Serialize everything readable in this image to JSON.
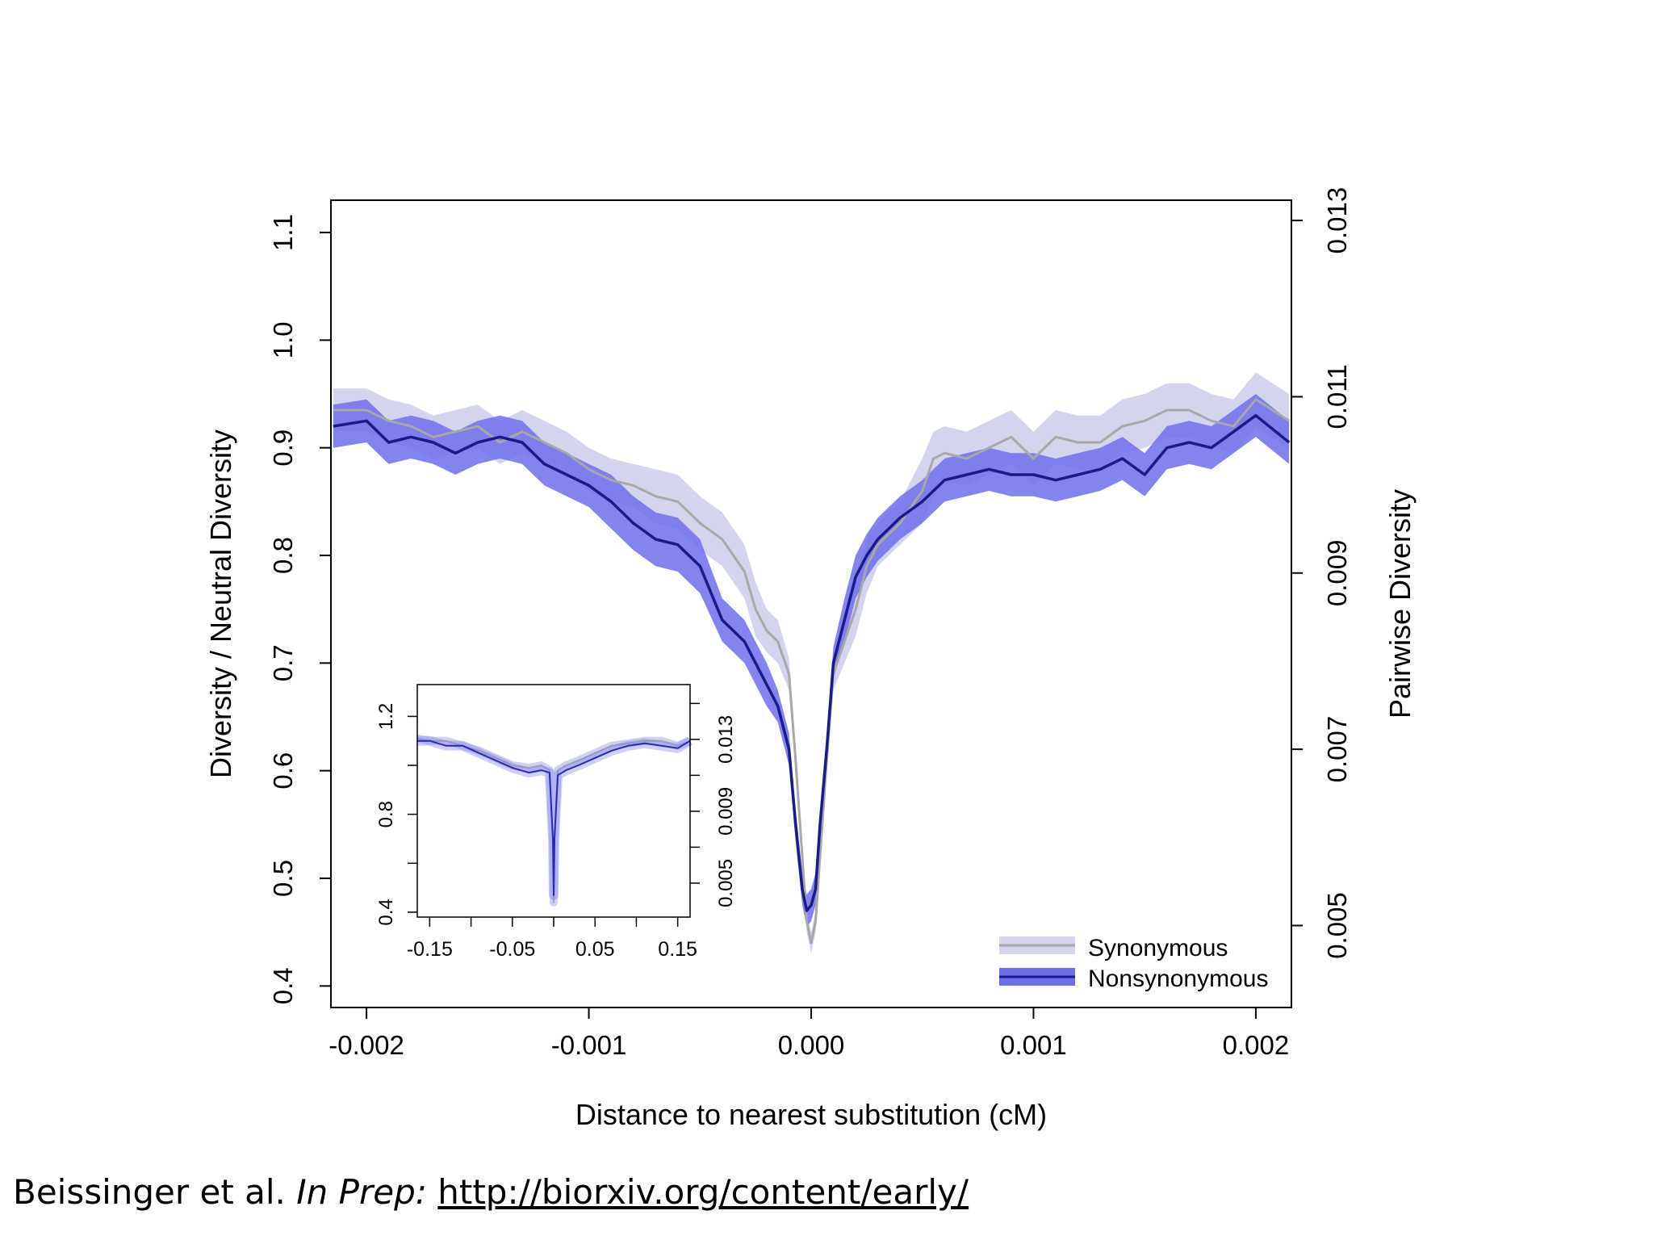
{
  "chart_data": [
    {
      "type": "line",
      "role": "main",
      "xlabel": "Distance to nearest substitution (cM)",
      "ylabel": "Diversity / Neutral Diversity",
      "y2label": "Pairwise Diversity",
      "xlim": [
        -0.00216,
        0.00216
      ],
      "ylim": [
        0.38,
        1.13
      ],
      "y2lim": [
        0.00407,
        0.01323
      ],
      "xticks": [
        "-0.002",
        "-0.001",
        "0.000",
        "0.001",
        "0.002"
      ],
      "xtick_values": [
        -0.002,
        -0.001,
        0.0,
        0.001,
        0.002
      ],
      "yticks": [
        "0.4",
        "0.5",
        "0.6",
        "0.7",
        "0.8",
        "0.9",
        "1.0",
        "1.1"
      ],
      "ytick_values": [
        0.4,
        0.5,
        0.6,
        0.7,
        0.8,
        0.9,
        1.0,
        1.1
      ],
      "y2ticks": [
        "0.005",
        "0.007",
        "0.009",
        "0.011",
        "0.013"
      ],
      "y2tick_values": [
        0.005,
        0.007,
        0.009,
        0.011,
        0.013
      ],
      "legend_position": "bottom-right",
      "grid": false,
      "colors": {
        "synonymous_line": "#a8a8a8",
        "synonymous_band": "#d4d4ee",
        "nonsynonymous_line": "#1a1a8a",
        "nonsynonymous_band": "#6e6eec"
      },
      "series": [
        {
          "name": "Synonymous",
          "x": [
            -0.00215,
            -0.002,
            -0.0019,
            -0.0018,
            -0.0017,
            -0.0016,
            -0.0015,
            -0.0014,
            -0.0013,
            -0.0012,
            -0.0011,
            -0.001,
            -0.0009,
            -0.0008,
            -0.0007,
            -0.0006,
            -0.0005,
            -0.0004,
            -0.0003,
            -0.00025,
            -0.0002,
            -0.00015,
            -0.0001,
            -7e-05,
            -4e-05,
            -2e-05,
            0.0,
            2e-05,
            4e-05,
            7e-05,
            0.0001,
            0.00015,
            0.0002,
            0.00025,
            0.0003,
            0.0004,
            0.0005,
            0.00055,
            0.0006,
            0.0007,
            0.0008,
            0.0009,
            0.001,
            0.0011,
            0.0012,
            0.0013,
            0.0014,
            0.0015,
            0.0016,
            0.0017,
            0.0018,
            0.0019,
            0.002,
            0.00215
          ],
          "y": [
            0.935,
            0.935,
            0.925,
            0.92,
            0.91,
            0.915,
            0.92,
            0.905,
            0.915,
            0.905,
            0.895,
            0.88,
            0.87,
            0.865,
            0.855,
            0.85,
            0.83,
            0.815,
            0.785,
            0.75,
            0.73,
            0.72,
            0.69,
            0.61,
            0.52,
            0.46,
            0.44,
            0.46,
            0.52,
            0.61,
            0.69,
            0.72,
            0.75,
            0.79,
            0.81,
            0.83,
            0.86,
            0.89,
            0.895,
            0.89,
            0.9,
            0.91,
            0.89,
            0.91,
            0.905,
            0.905,
            0.92,
            0.925,
            0.935,
            0.935,
            0.925,
            0.92,
            0.945,
            0.925
          ],
          "lower": [
            0.915,
            0.915,
            0.905,
            0.9,
            0.89,
            0.895,
            0.9,
            0.885,
            0.895,
            0.885,
            0.875,
            0.86,
            0.85,
            0.845,
            0.83,
            0.825,
            0.805,
            0.79,
            0.76,
            0.725,
            0.71,
            0.7,
            0.675,
            0.6,
            0.51,
            0.45,
            0.43,
            0.45,
            0.51,
            0.6,
            0.675,
            0.7,
            0.725,
            0.765,
            0.79,
            0.81,
            0.83,
            0.855,
            0.87,
            0.865,
            0.875,
            0.885,
            0.865,
            0.885,
            0.88,
            0.88,
            0.895,
            0.9,
            0.91,
            0.91,
            0.9,
            0.895,
            0.92,
            0.9
          ],
          "upper": [
            0.955,
            0.955,
            0.945,
            0.94,
            0.93,
            0.935,
            0.94,
            0.925,
            0.935,
            0.925,
            0.915,
            0.9,
            0.89,
            0.885,
            0.88,
            0.875,
            0.855,
            0.84,
            0.81,
            0.775,
            0.75,
            0.74,
            0.705,
            0.62,
            0.53,
            0.47,
            0.45,
            0.47,
            0.53,
            0.62,
            0.705,
            0.74,
            0.775,
            0.815,
            0.83,
            0.85,
            0.89,
            0.915,
            0.92,
            0.915,
            0.925,
            0.935,
            0.915,
            0.935,
            0.93,
            0.93,
            0.945,
            0.95,
            0.96,
            0.96,
            0.95,
            0.945,
            0.97,
            0.95
          ]
        },
        {
          "name": "Nonsynonymous",
          "x": [
            -0.00215,
            -0.002,
            -0.0019,
            -0.0018,
            -0.0017,
            -0.0016,
            -0.0015,
            -0.0014,
            -0.0013,
            -0.0012,
            -0.0011,
            -0.001,
            -0.0009,
            -0.0008,
            -0.0007,
            -0.0006,
            -0.0005,
            -0.0004,
            -0.0003,
            -0.00025,
            -0.0002,
            -0.00015,
            -0.0001,
            -7e-05,
            -4e-05,
            -2e-05,
            0.0,
            2e-05,
            4e-05,
            7e-05,
            0.0001,
            0.00015,
            0.0002,
            0.00025,
            0.0003,
            0.0004,
            0.0005,
            0.00055,
            0.0006,
            0.0007,
            0.0008,
            0.0009,
            0.001,
            0.0011,
            0.0012,
            0.0013,
            0.0014,
            0.0015,
            0.0016,
            0.0017,
            0.0018,
            0.0019,
            0.002,
            0.00215
          ],
          "y": [
            0.92,
            0.925,
            0.905,
            0.91,
            0.905,
            0.895,
            0.905,
            0.91,
            0.905,
            0.885,
            0.875,
            0.865,
            0.85,
            0.83,
            0.815,
            0.81,
            0.79,
            0.74,
            0.72,
            0.7,
            0.68,
            0.66,
            0.62,
            0.55,
            0.49,
            0.47,
            0.475,
            0.49,
            0.55,
            0.62,
            0.7,
            0.74,
            0.78,
            0.8,
            0.815,
            0.835,
            0.85,
            0.86,
            0.87,
            0.875,
            0.88,
            0.875,
            0.875,
            0.87,
            0.875,
            0.88,
            0.89,
            0.875,
            0.9,
            0.905,
            0.9,
            0.915,
            0.93,
            0.905
          ],
          "lower": [
            0.9,
            0.905,
            0.885,
            0.89,
            0.885,
            0.875,
            0.885,
            0.89,
            0.885,
            0.865,
            0.855,
            0.845,
            0.825,
            0.805,
            0.79,
            0.785,
            0.765,
            0.72,
            0.7,
            0.68,
            0.66,
            0.645,
            0.605,
            0.535,
            0.475,
            0.455,
            0.46,
            0.475,
            0.535,
            0.605,
            0.685,
            0.72,
            0.76,
            0.78,
            0.795,
            0.815,
            0.83,
            0.84,
            0.85,
            0.855,
            0.86,
            0.855,
            0.855,
            0.85,
            0.855,
            0.86,
            0.87,
            0.855,
            0.88,
            0.885,
            0.88,
            0.895,
            0.91,
            0.885
          ],
          "upper": [
            0.94,
            0.945,
            0.925,
            0.93,
            0.925,
            0.915,
            0.925,
            0.93,
            0.925,
            0.905,
            0.895,
            0.885,
            0.875,
            0.855,
            0.84,
            0.835,
            0.815,
            0.76,
            0.74,
            0.72,
            0.7,
            0.675,
            0.635,
            0.565,
            0.505,
            0.485,
            0.49,
            0.505,
            0.565,
            0.635,
            0.715,
            0.76,
            0.8,
            0.82,
            0.835,
            0.855,
            0.87,
            0.88,
            0.89,
            0.895,
            0.9,
            0.895,
            0.895,
            0.89,
            0.895,
            0.9,
            0.91,
            0.895,
            0.92,
            0.925,
            0.92,
            0.935,
            0.95,
            0.925
          ]
        }
      ]
    },
    {
      "type": "line",
      "role": "inset",
      "xlim": [
        -0.165,
        0.165
      ],
      "ylim": [
        0.38,
        1.33
      ],
      "y2lim": [
        0.00311,
        0.01605
      ],
      "xticks": [
        "-0.15",
        "-0.05",
        "0.05",
        "0.15"
      ],
      "xtick_values": [
        -0.15,
        -0.1,
        -0.05,
        0.0,
        0.05,
        0.1,
        0.15
      ],
      "yticks": [
        "0.4",
        "0.8",
        "1.2"
      ],
      "ytick_values": [
        0.4,
        0.6,
        0.8,
        1.0,
        1.2
      ],
      "y2ticks": [
        "0.005",
        "0.009",
        "0.013"
      ],
      "y2tick_values": [
        0.005,
        0.007,
        0.009,
        0.011,
        0.013,
        0.015
      ],
      "series": [
        {
          "name": "Synonymous",
          "x": [
            -0.165,
            -0.15,
            -0.13,
            -0.11,
            -0.09,
            -0.07,
            -0.05,
            -0.03,
            -0.015,
            -0.005,
            -0.001,
            0.0,
            0.001,
            0.005,
            0.015,
            0.03,
            0.05,
            0.07,
            0.09,
            0.11,
            0.13,
            0.15,
            0.165
          ],
          "y": [
            1.11,
            1.1,
            1.1,
            1.08,
            1.06,
            1.03,
            1.0,
            0.99,
            1.0,
            0.98,
            0.7,
            0.44,
            0.7,
            0.98,
            1.0,
            1.02,
            1.05,
            1.08,
            1.09,
            1.1,
            1.1,
            1.08,
            1.1
          ]
        },
        {
          "name": "Nonsynonymous",
          "x": [
            -0.165,
            -0.15,
            -0.13,
            -0.11,
            -0.09,
            -0.07,
            -0.05,
            -0.03,
            -0.015,
            -0.005,
            -0.001,
            0.0,
            0.001,
            0.005,
            0.015,
            0.03,
            0.05,
            0.07,
            0.09,
            0.11,
            0.13,
            0.15,
            0.165
          ],
          "y": [
            1.1,
            1.1,
            1.08,
            1.08,
            1.05,
            1.02,
            0.99,
            0.97,
            0.98,
            0.97,
            0.7,
            0.47,
            0.7,
            0.96,
            0.98,
            1.0,
            1.03,
            1.06,
            1.08,
            1.09,
            1.08,
            1.07,
            1.1
          ]
        }
      ]
    }
  ],
  "citation": {
    "authors": "Beissinger et al.",
    "status": "In Prep:",
    "link": "http://biorxiv.org/content/early/"
  }
}
